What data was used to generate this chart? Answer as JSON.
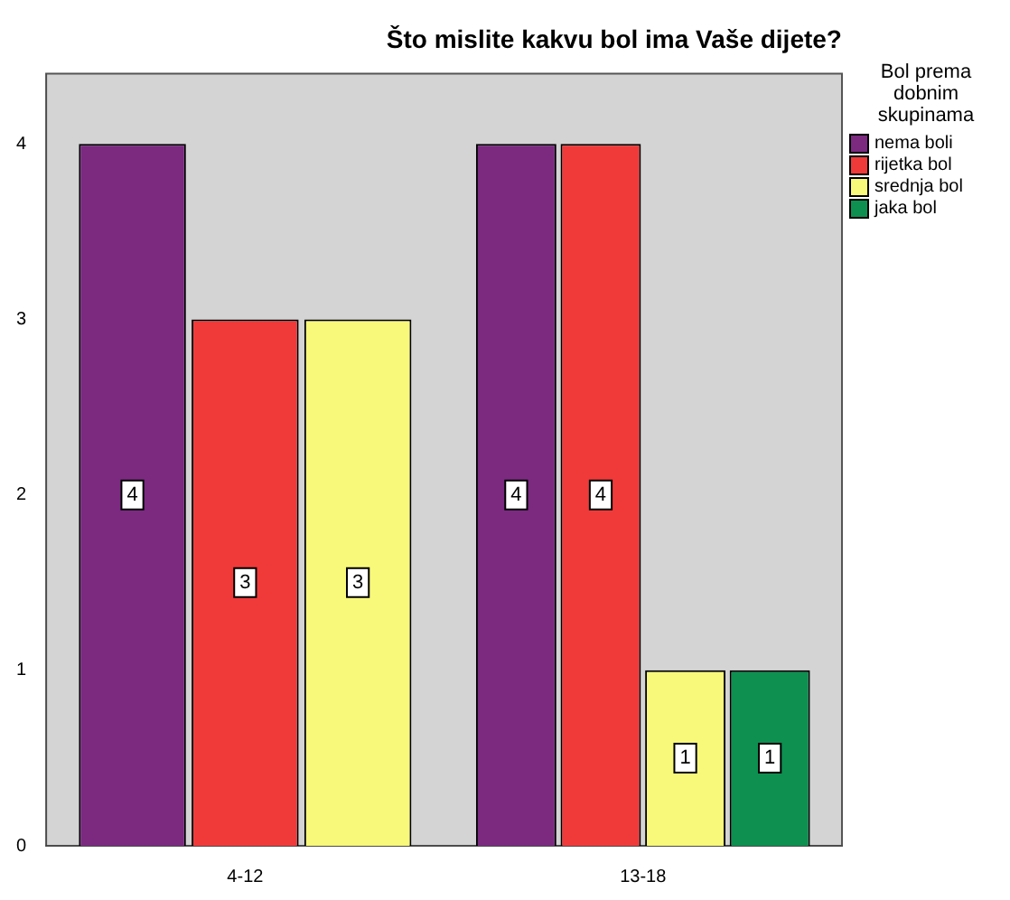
{
  "chart_data": {
    "type": "bar",
    "title": "Što mislite kakvu bol ima Vaše dijete?",
    "legend_title": "Bol prema dobnim skupinama",
    "categories": [
      "4-12",
      "13-18"
    ],
    "series": [
      {
        "name": "nema boli",
        "color": "#7b2a80",
        "values": [
          4,
          4
        ]
      },
      {
        "name": "rijetka bol",
        "color": "#f03a3a",
        "values": [
          3,
          4
        ]
      },
      {
        "name": "srednja bol",
        "color": "#f8f87a",
        "values": [
          3,
          1
        ]
      },
      {
        "name": "jaka bol",
        "color": "#0d9050",
        "values": [
          null,
          1
        ]
      }
    ],
    "ylim": [
      0,
      4.4
    ],
    "yticks": [
      0,
      1,
      2,
      3,
      4
    ],
    "grid": false,
    "legend": "right",
    "data_labels": true
  }
}
